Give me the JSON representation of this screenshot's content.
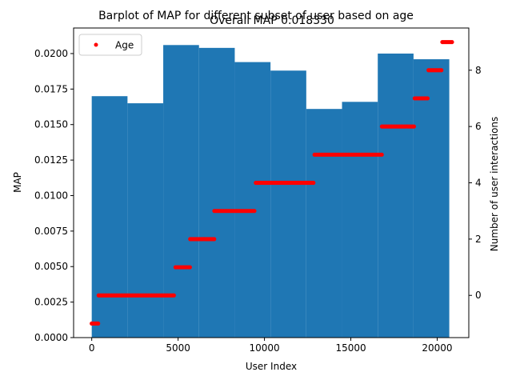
{
  "chart_data": {
    "type": "bar",
    "title": "Barplot of MAP for different subset of user based on age",
    "subtitle": "Overall MAP 0.018330",
    "xlabel": "User Index",
    "ylabel": "MAP",
    "y2label": "Number of user interactions",
    "xlim": [
      -1050,
      21830
    ],
    "ylim": [
      0,
      0.0218
    ],
    "y2lim": [
      -1.5,
      9.5
    ],
    "x_ticks": [
      0,
      5000,
      10000,
      15000,
      20000
    ],
    "y_ticks": [
      0,
      0.0025,
      0.005,
      0.0075,
      0.01,
      0.0125,
      0.015,
      0.0175,
      0.02
    ],
    "y_tick_labels": [
      "0.0000",
      "0.0025",
      "0.0050",
      "0.0075",
      "0.0100",
      "0.0125",
      "0.0150",
      "0.0175",
      "0.0200"
    ],
    "y2_ticks": [
      0,
      2,
      4,
      6,
      8
    ],
    "bar_color": "#1f77b4",
    "dot_color": "#ff0000",
    "legend": {
      "placement": "top-left",
      "entries": [
        "Age"
      ]
    },
    "grid": false,
    "bars": [
      {
        "x_start": 0,
        "x_end": 2070,
        "value": 0.017
      },
      {
        "x_start": 2070,
        "x_end": 4140,
        "value": 0.0165
      },
      {
        "x_start": 4140,
        "x_end": 6210,
        "value": 0.0206
      },
      {
        "x_start": 6210,
        "x_end": 8280,
        "value": 0.0204
      },
      {
        "x_start": 8280,
        "x_end": 10350,
        "value": 0.0194
      },
      {
        "x_start": 10350,
        "x_end": 12420,
        "value": 0.0188
      },
      {
        "x_start": 12420,
        "x_end": 14490,
        "value": 0.0161
      },
      {
        "x_start": 14490,
        "x_end": 16560,
        "value": 0.0166
      },
      {
        "x_start": 16560,
        "x_end": 18630,
        "value": 0.02
      },
      {
        "x_start": 18630,
        "x_end": 20700,
        "value": 0.0196
      }
    ],
    "series": [
      {
        "name": "Age",
        "segments": [
          {
            "x_start": 0,
            "x_end": 400,
            "value": -1
          },
          {
            "x_start": 400,
            "x_end": 4800,
            "value": 0
          },
          {
            "x_start": 4850,
            "x_end": 5700,
            "value": 1
          },
          {
            "x_start": 5700,
            "x_end": 7100,
            "value": 2
          },
          {
            "x_start": 7100,
            "x_end": 9500,
            "value": 3
          },
          {
            "x_start": 9500,
            "x_end": 12900,
            "value": 4
          },
          {
            "x_start": 12900,
            "x_end": 16800,
            "value": 5
          },
          {
            "x_start": 16800,
            "x_end": 18700,
            "value": 6
          },
          {
            "x_start": 18700,
            "x_end": 19500,
            "value": 7
          },
          {
            "x_start": 19500,
            "x_end": 20300,
            "value": 8
          },
          {
            "x_start": 20300,
            "x_end": 20900,
            "value": 9
          }
        ]
      }
    ]
  }
}
